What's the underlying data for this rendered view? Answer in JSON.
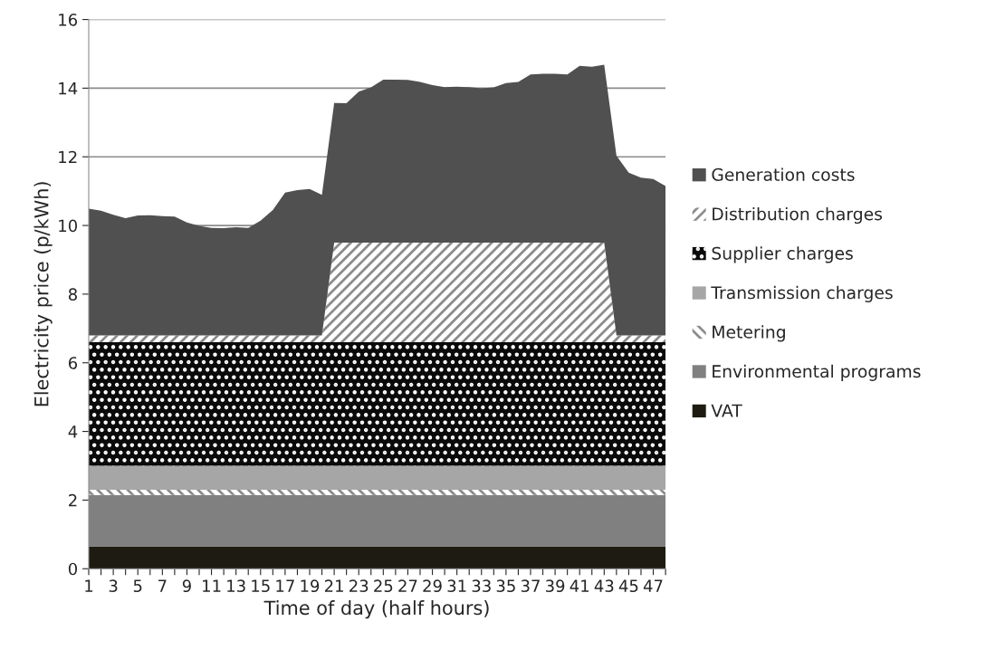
{
  "chart_data": {
    "type": "area",
    "stacked": true,
    "xlabel": "Time of day (half hours)",
    "ylabel": "Electricity price (p/kWh)",
    "categories": [
      "1",
      null,
      "3",
      null,
      "5",
      null,
      "7",
      null,
      "9",
      null,
      "11",
      null,
      "13",
      null,
      "15",
      null,
      "17",
      null,
      "19",
      null,
      "21",
      null,
      "23",
      null,
      "25",
      null,
      "27",
      null,
      "29",
      null,
      "31",
      null,
      "33",
      null,
      "35",
      null,
      "37",
      null,
      "39",
      null,
      "41",
      null,
      "43",
      null,
      "45",
      null,
      "47",
      null
    ],
    "ylim": [
      0,
      16
    ],
    "yticks": [
      0,
      2,
      4,
      6,
      8,
      10,
      12,
      14,
      16
    ],
    "grid": "y",
    "legend": "right",
    "series": [
      {
        "name": "VAT",
        "color": "#1e1c12",
        "values": [
          0.65,
          0.65,
          0.65,
          0.65,
          0.65,
          0.65,
          0.65,
          0.65,
          0.65,
          0.65,
          0.65,
          0.65,
          0.65,
          0.65,
          0.65,
          0.65,
          0.65,
          0.65,
          0.65,
          0.65,
          0.65,
          0.65,
          0.65,
          0.65,
          0.65,
          0.65,
          0.65,
          0.65,
          0.65,
          0.65,
          0.65,
          0.65,
          0.65,
          0.65,
          0.65,
          0.65,
          0.65,
          0.65,
          0.65,
          0.65,
          0.65,
          0.65,
          0.65,
          0.65,
          0.65,
          0.65,
          0.65,
          0.65
        ]
      },
      {
        "name": "Environmental programs",
        "color": "#808080",
        "values": [
          1.5,
          1.5,
          1.5,
          1.5,
          1.5,
          1.5,
          1.5,
          1.5,
          1.5,
          1.5,
          1.5,
          1.5,
          1.5,
          1.5,
          1.5,
          1.5,
          1.5,
          1.5,
          1.5,
          1.5,
          1.5,
          1.5,
          1.5,
          1.5,
          1.5,
          1.5,
          1.5,
          1.5,
          1.5,
          1.5,
          1.5,
          1.5,
          1.5,
          1.5,
          1.5,
          1.5,
          1.5,
          1.5,
          1.5,
          1.5,
          1.5,
          1.5,
          1.5,
          1.5,
          1.5,
          1.5,
          1.5,
          1.5
        ]
      },
      {
        "name": "Metering",
        "color": "#8c8c8c",
        "values": [
          0.15,
          0.15,
          0.15,
          0.15,
          0.15,
          0.15,
          0.15,
          0.15,
          0.15,
          0.15,
          0.15,
          0.15,
          0.15,
          0.15,
          0.15,
          0.15,
          0.15,
          0.15,
          0.15,
          0.15,
          0.15,
          0.15,
          0.15,
          0.15,
          0.15,
          0.15,
          0.15,
          0.15,
          0.15,
          0.15,
          0.15,
          0.15,
          0.15,
          0.15,
          0.15,
          0.15,
          0.15,
          0.15,
          0.15,
          0.15,
          0.15,
          0.15,
          0.15,
          0.15,
          0.15,
          0.15,
          0.15,
          0.15
        ]
      },
      {
        "name": "Transmission charges",
        "color": "#a6a6a6",
        "values": [
          0.7,
          0.7,
          0.7,
          0.7,
          0.7,
          0.7,
          0.7,
          0.7,
          0.7,
          0.7,
          0.7,
          0.7,
          0.7,
          0.7,
          0.7,
          0.7,
          0.7,
          0.7,
          0.7,
          0.7,
          0.7,
          0.7,
          0.7,
          0.7,
          0.7,
          0.7,
          0.7,
          0.7,
          0.7,
          0.7,
          0.7,
          0.7,
          0.7,
          0.7,
          0.7,
          0.7,
          0.7,
          0.7,
          0.7,
          0.7,
          0.7,
          0.7,
          0.7,
          0.7,
          0.7,
          0.7,
          0.7,
          0.7
        ]
      },
      {
        "name": "Supplier charges",
        "color": "#0a0a0a",
        "values": [
          3.6,
          3.6,
          3.6,
          3.6,
          3.6,
          3.6,
          3.6,
          3.6,
          3.6,
          3.6,
          3.6,
          3.6,
          3.6,
          3.6,
          3.6,
          3.6,
          3.6,
          3.6,
          3.6,
          3.6,
          3.6,
          3.6,
          3.6,
          3.6,
          3.6,
          3.6,
          3.6,
          3.6,
          3.6,
          3.6,
          3.6,
          3.6,
          3.6,
          3.6,
          3.6,
          3.6,
          3.6,
          3.6,
          3.6,
          3.6,
          3.6,
          3.6,
          3.6,
          3.6,
          3.6,
          3.6,
          3.6,
          3.6
        ]
      },
      {
        "name": "Distribution charges",
        "color": "#8c8c8c",
        "values": [
          0.2,
          0.2,
          0.2,
          0.2,
          0.2,
          0.2,
          0.2,
          0.2,
          0.2,
          0.2,
          0.2,
          0.2,
          0.2,
          0.2,
          0.2,
          0.2,
          0.2,
          0.2,
          0.2,
          0.2,
          2.9,
          2.9,
          2.9,
          2.9,
          2.9,
          2.9,
          2.9,
          2.9,
          2.9,
          2.9,
          2.9,
          2.9,
          2.9,
          2.9,
          2.9,
          2.9,
          2.9,
          2.9,
          2.9,
          2.9,
          2.9,
          2.9,
          2.9,
          0.2,
          0.2,
          0.2,
          0.2,
          0.2
        ]
      },
      {
        "name": "Generation costs",
        "color": "#505050",
        "values": [
          3.69,
          3.63,
          3.51,
          3.41,
          3.49,
          3.5,
          3.47,
          3.46,
          3.29,
          3.19,
          3.13,
          3.12,
          3.15,
          3.13,
          3.34,
          3.65,
          4.16,
          4.23,
          4.26,
          4.09,
          4.07,
          4.06,
          4.4,
          4.52,
          4.75,
          4.75,
          4.74,
          4.68,
          4.59,
          4.53,
          4.54,
          4.53,
          4.5,
          4.52,
          4.65,
          4.68,
          4.9,
          4.92,
          4.92,
          4.9,
          5.15,
          5.12,
          5.18,
          5.23,
          4.74,
          4.59,
          4.55,
          4.35
        ]
      }
    ]
  }
}
